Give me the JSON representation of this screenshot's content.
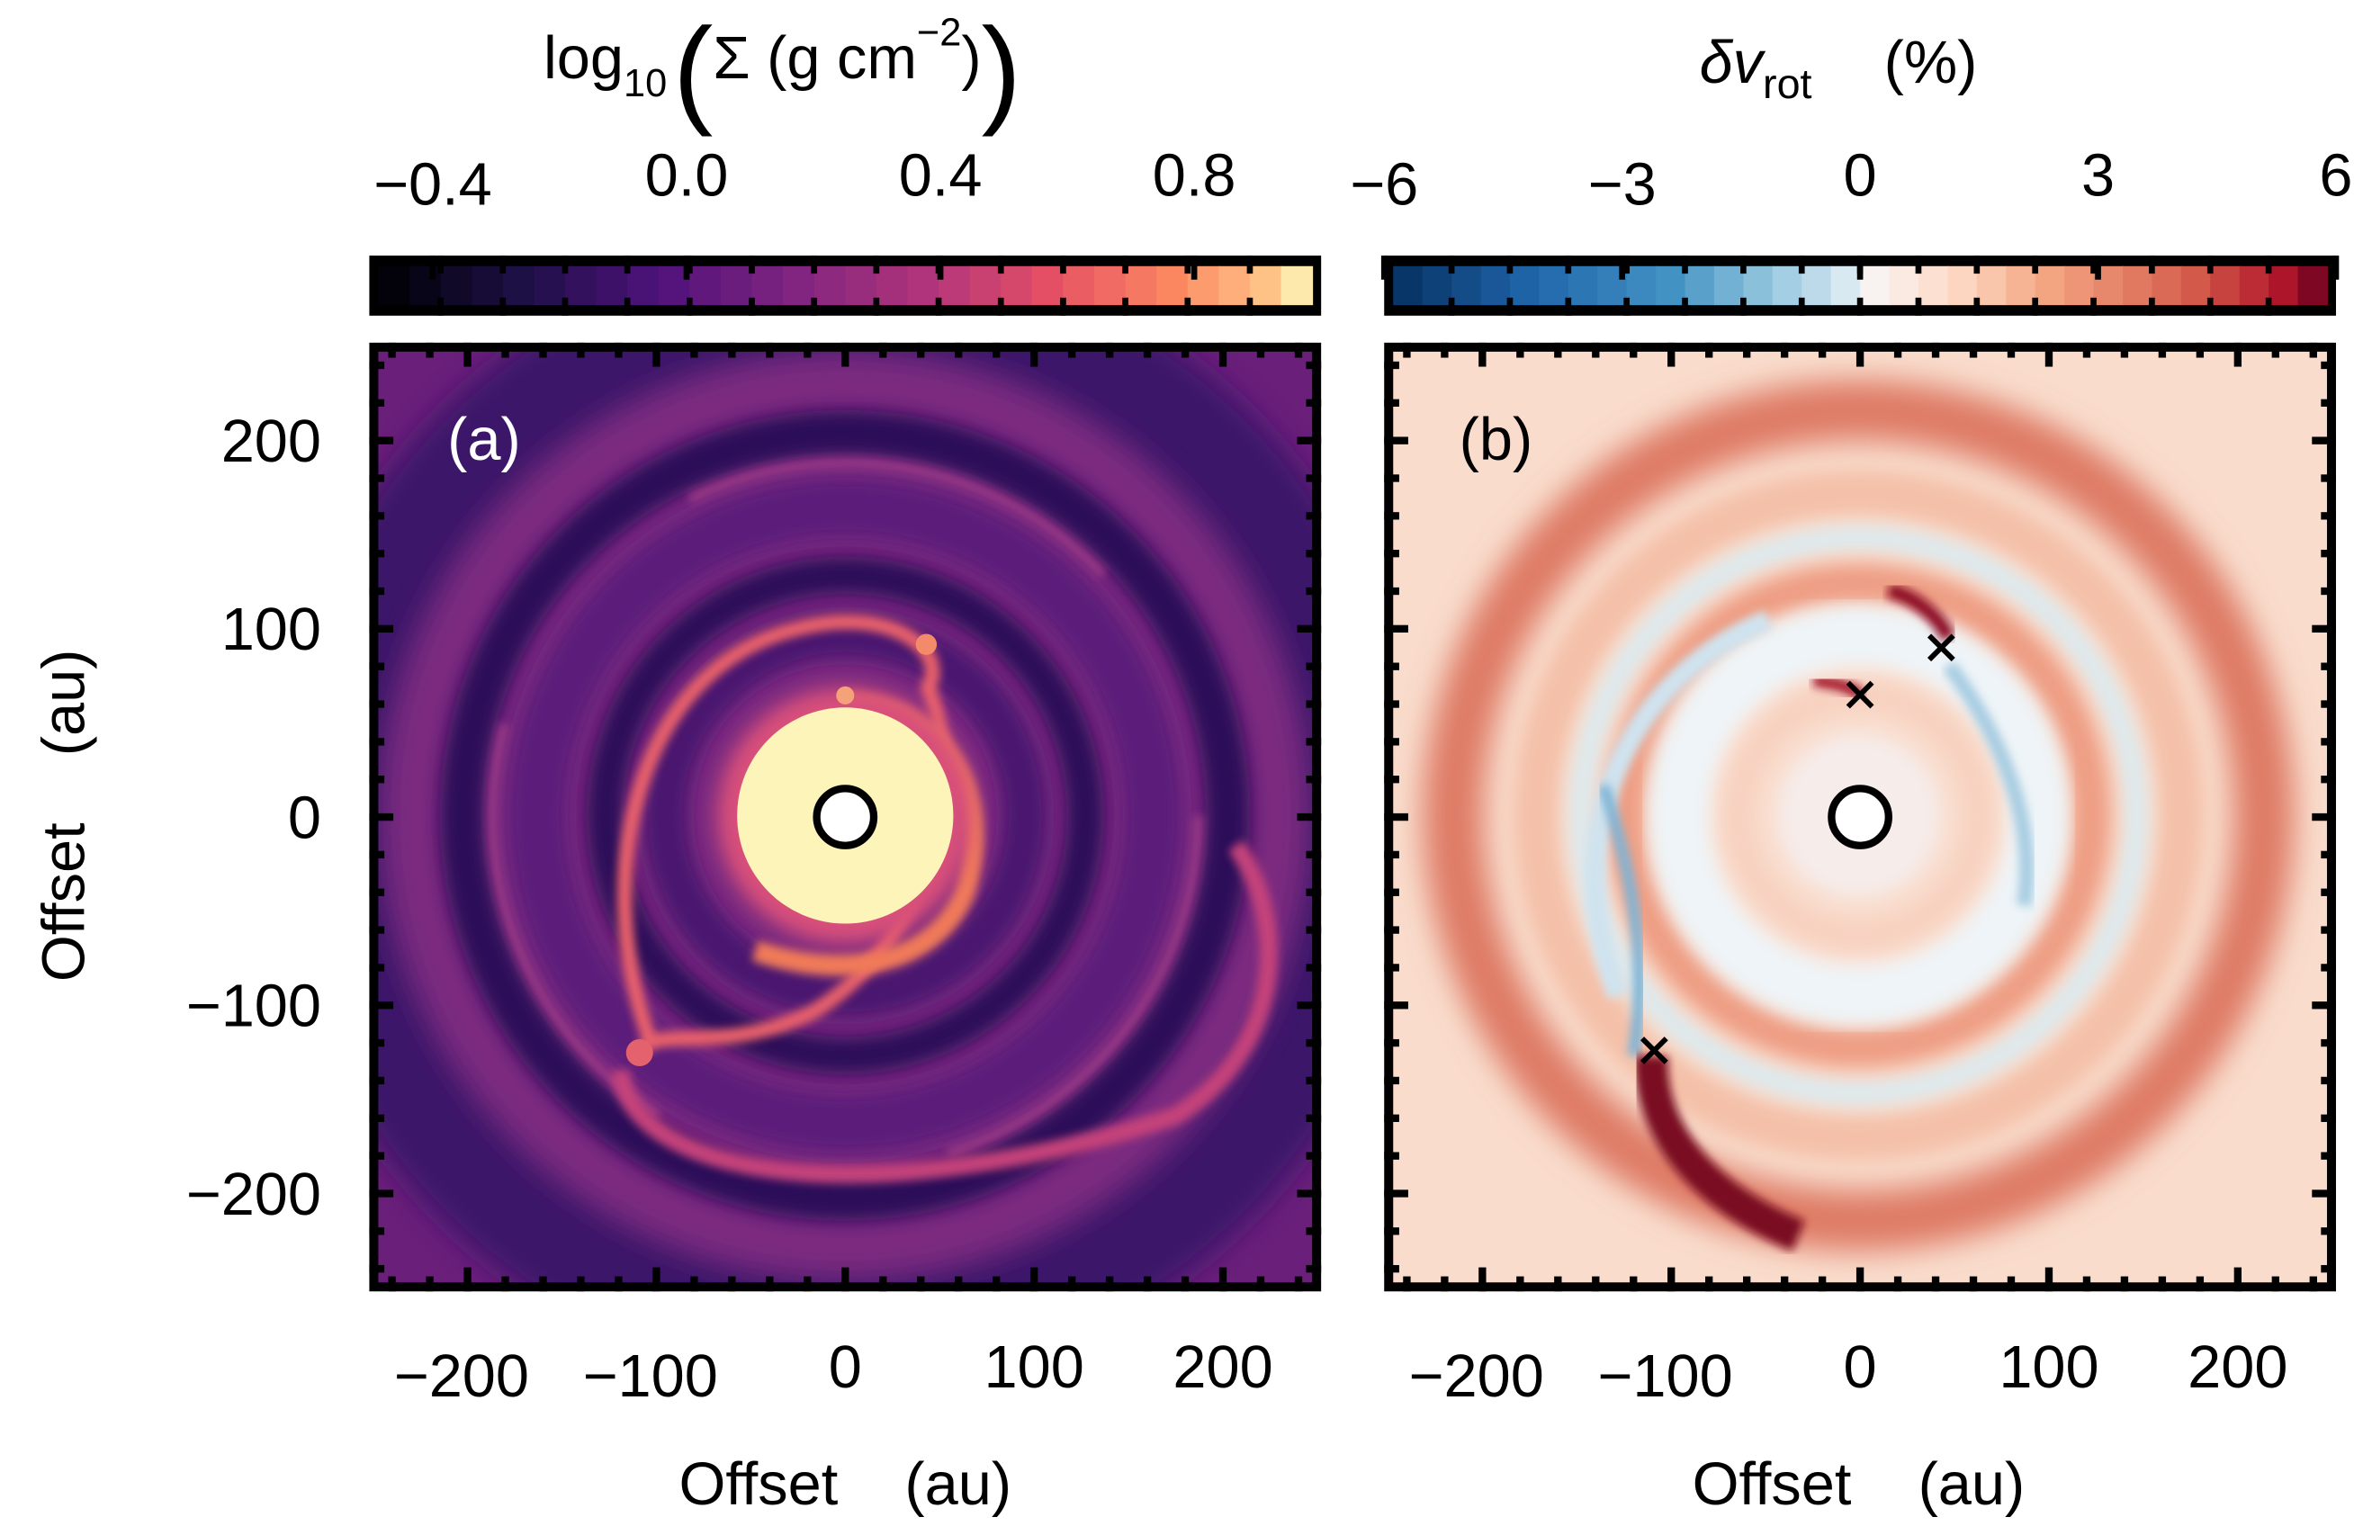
{
  "chart_data": [
    {
      "type": "heatmap",
      "panel_label": "(a)",
      "quantity": "surface density",
      "colorbar": {
        "label_prefix": "log",
        "label_sub": "10",
        "label_main": "Σ (g cm",
        "label_sup": "−2",
        "label_close": ")",
        "range": [
          -0.5,
          1.0
        ],
        "ticks": [
          -0.4,
          0.0,
          0.4,
          0.8
        ],
        "tick_labels": [
          "−0.4",
          "0.0",
          "0.4",
          "0.8"
        ],
        "colormap": "magma",
        "levels": 15
      },
      "xlabel": "Offset    (au)",
      "ylabel": "Offset    (au)",
      "xlim": [
        -252,
        252
      ],
      "ylim": [
        -252,
        252
      ],
      "xticks": [
        -200,
        -100,
        0,
        100,
        200
      ],
      "xtick_labels": [
        "−200",
        "−100",
        "0",
        "100",
        "200"
      ],
      "yticks": [
        200,
        100,
        0,
        -100,
        -200
      ],
      "ytick_labels": [
        "200",
        "100",
        "0",
        "−100",
        "−200"
      ],
      "star_marker": {
        "x": 0,
        "y": 0,
        "symbol": "open-circle"
      }
    },
    {
      "type": "heatmap",
      "panel_label": "(b)",
      "quantity": "rotation velocity deviation",
      "colorbar": {
        "label_main": "δv",
        "label_sub": "rot",
        "label_unit": "(%)",
        "range": [
          -6,
          6
        ],
        "ticks": [
          -6,
          -3,
          0,
          3,
          6
        ],
        "tick_labels": [
          "−6",
          "−3",
          "0",
          "3",
          "6"
        ],
        "colormap": "RdBu_r",
        "levels": 16
      },
      "xlabel": "Offset    (au)",
      "xlim": [
        -252,
        252
      ],
      "ylim": [
        -252,
        252
      ],
      "xticks": [
        -200,
        -100,
        0,
        100,
        200
      ],
      "xtick_labels": [
        "−200",
        "−100",
        "0",
        "100",
        "200"
      ],
      "star_marker": {
        "x": 0,
        "y": 0,
        "symbol": "open-circle"
      },
      "planet_markers": [
        {
          "x": -109,
          "y": -124,
          "symbol": "x"
        },
        {
          "x": 0,
          "y": 65,
          "symbol": "x"
        },
        {
          "x": 43,
          "y": 90,
          "symbol": "x"
        }
      ]
    }
  ]
}
